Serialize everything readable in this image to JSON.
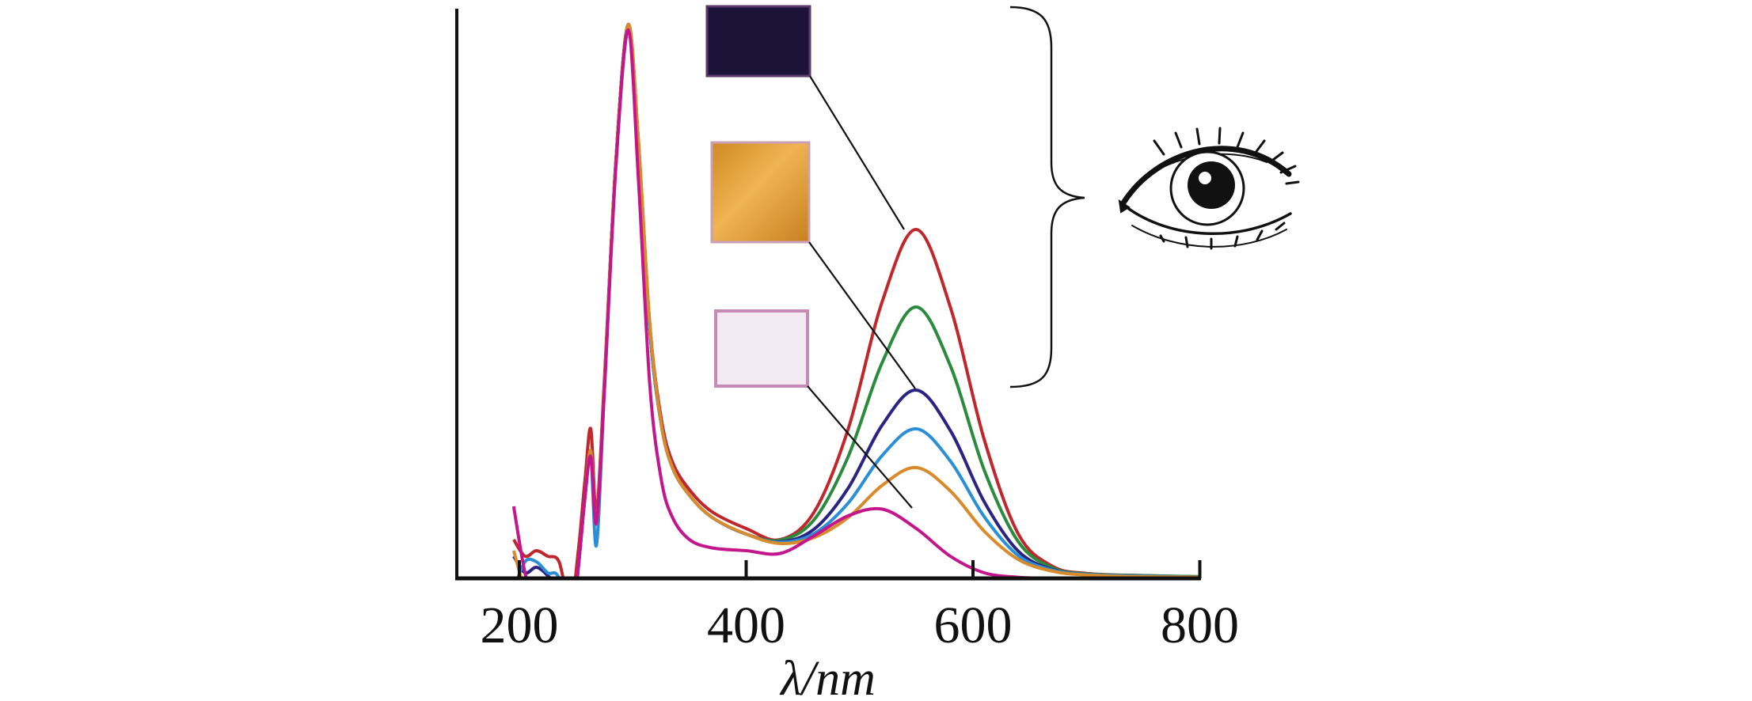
{
  "chart_data": {
    "type": "line",
    "title": "",
    "xlabel": "λ/nm",
    "ylabel": "",
    "xlim": [
      144,
      800
    ],
    "ylim": [
      0,
      1.02
    ],
    "xticks": [
      200,
      400,
      600,
      800
    ],
    "xtick_labels": [
      "200",
      "400",
      "600",
      "800"
    ],
    "grid": false,
    "legend": "none",
    "x": [
      195,
      205,
      215,
      225,
      235,
      245,
      252,
      258,
      263,
      268,
      275,
      285,
      296,
      305,
      315,
      325,
      335,
      350,
      370,
      400,
      430,
      460,
      490,
      520,
      550,
      580,
      610,
      640,
      670,
      700,
      750,
      800
    ],
    "series": [
      {
        "name": "red",
        "color": "#c0272d",
        "values": [
          0.07,
          0.04,
          0.05,
          0.04,
          0.03,
          -0.05,
          0.05,
          0.18,
          0.27,
          0.12,
          0.36,
          0.75,
          1.0,
          0.79,
          0.46,
          0.29,
          0.21,
          0.16,
          0.12,
          0.09,
          0.07,
          0.12,
          0.27,
          0.5,
          0.63,
          0.49,
          0.25,
          0.08,
          0.022,
          0.009,
          0.005,
          0.003
        ]
      },
      {
        "name": "green",
        "color": "#2a8a3e",
        "values": [
          0.0,
          -0.05,
          -0.05,
          -0.05,
          -0.05,
          -0.1,
          0.02,
          0.15,
          0.23,
          0.1,
          0.35,
          0.75,
          1.0,
          0.78,
          0.45,
          0.28,
          0.2,
          0.15,
          0.11,
          0.08,
          0.069,
          0.106,
          0.22,
          0.39,
          0.49,
          0.384,
          0.195,
          0.066,
          0.019,
          0.008,
          0.005,
          0.003
        ]
      },
      {
        "name": "navy",
        "color": "#2b2383",
        "values": [
          0.04,
          0.01,
          0.02,
          0.005,
          -0.02,
          -0.1,
          0.02,
          0.15,
          0.23,
          0.1,
          0.35,
          0.75,
          1.0,
          0.78,
          0.45,
          0.28,
          0.2,
          0.15,
          0.11,
          0.08,
          0.066,
          0.089,
          0.163,
          0.277,
          0.34,
          0.267,
          0.138,
          0.049,
          0.016,
          0.007,
          0.004,
          0.002
        ]
      },
      {
        "name": "blue",
        "color": "#2a8fd6",
        "values": [
          -0.02,
          0.03,
          0.03,
          0.01,
          0.0,
          -0.1,
          0.02,
          0.15,
          0.22,
          0.06,
          0.34,
          0.74,
          0.99,
          0.78,
          0.45,
          0.28,
          0.2,
          0.15,
          0.11,
          0.08,
          0.065,
          0.081,
          0.136,
          0.222,
          0.27,
          0.212,
          0.111,
          0.041,
          0.015,
          0.007,
          0.004,
          0.002
        ]
      },
      {
        "name": "orange",
        "color": "#d98a2a",
        "values": [
          0.05,
          -0.02,
          -0.05,
          -0.05,
          -0.05,
          -0.1,
          0.02,
          0.15,
          0.23,
          0.1,
          0.35,
          0.75,
          1.0,
          0.79,
          0.46,
          0.28,
          0.2,
          0.15,
          0.11,
          0.08,
          0.063,
          0.074,
          0.11,
          0.168,
          0.2,
          0.158,
          0.085,
          0.034,
          0.013,
          0.006,
          0.003,
          0.002
        ]
      },
      {
        "name": "magenta",
        "color": "#c4168c",
        "values": [
          0.13,
          0.01,
          -0.05,
          -0.05,
          -0.05,
          -0.1,
          0.02,
          0.15,
          0.22,
          0.1,
          0.34,
          0.74,
          0.99,
          0.72,
          0.35,
          0.18,
          0.11,
          0.07,
          0.055,
          0.05,
          0.045,
          0.077,
          0.113,
          0.125,
          0.09,
          0.04,
          0.01,
          0.002,
          0.0,
          0.0,
          0.0,
          0.0
        ]
      }
    ]
  },
  "inset": {
    "swatches": [
      {
        "name": "dark-violet-film",
        "color": "#1c1438",
        "points_to": "red"
      },
      {
        "name": "orange-film",
        "color": "#d9932e",
        "points_to": "navy"
      },
      {
        "name": "pale-pink-film",
        "color": "#efe2ee",
        "points_to": "magenta"
      }
    ]
  }
}
